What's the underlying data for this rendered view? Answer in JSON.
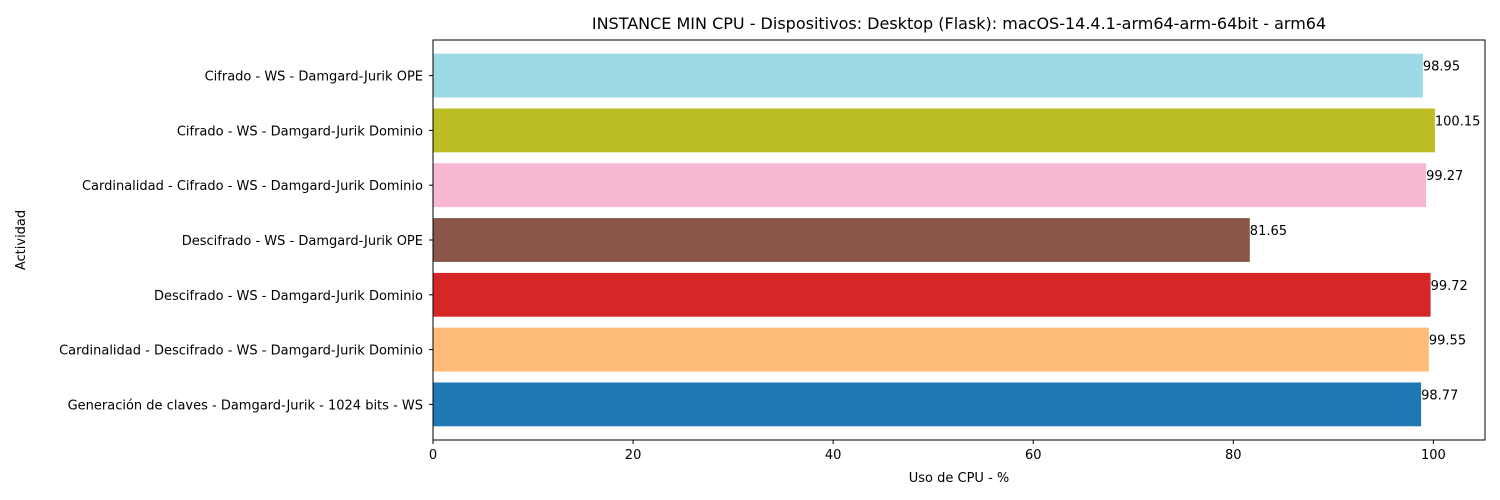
{
  "chart_data": {
    "type": "bar",
    "orientation": "horizontal",
    "title": "INSTANCE MIN CPU - Dispositivos: Desktop (Flask): macOS-14.4.1-arm64-arm-64bit - arm64",
    "xlabel": "Uso de CPU - %",
    "ylabel": "Actividad",
    "xlim": [
      0,
      105.16
    ],
    "xticks": [
      0,
      20,
      40,
      60,
      80,
      100
    ],
    "grid": false,
    "categories": [
      "Generación de claves - Damgard-Jurik - 1024 bits - WS",
      "Cardinalidad - Descifrado - WS - Damgard-Jurik Dominio",
      "Descifrado - WS - Damgard-Jurik Dominio",
      "Descifrado - WS - Damgard-Jurik OPE",
      "Cardinalidad - Cifrado - WS - Damgard-Jurik Dominio",
      "Cifrado - WS - Damgard-Jurik Dominio",
      "Cifrado - WS - Damgard-Jurik OPE"
    ],
    "values": [
      98.77,
      99.55,
      99.72,
      81.65,
      99.27,
      100.15,
      98.95
    ],
    "colors": [
      "#1f77b4",
      "#ffbb78",
      "#d62728",
      "#8c564b",
      "#f7b6d2",
      "#bcbd22",
      "#9edae5"
    ]
  }
}
